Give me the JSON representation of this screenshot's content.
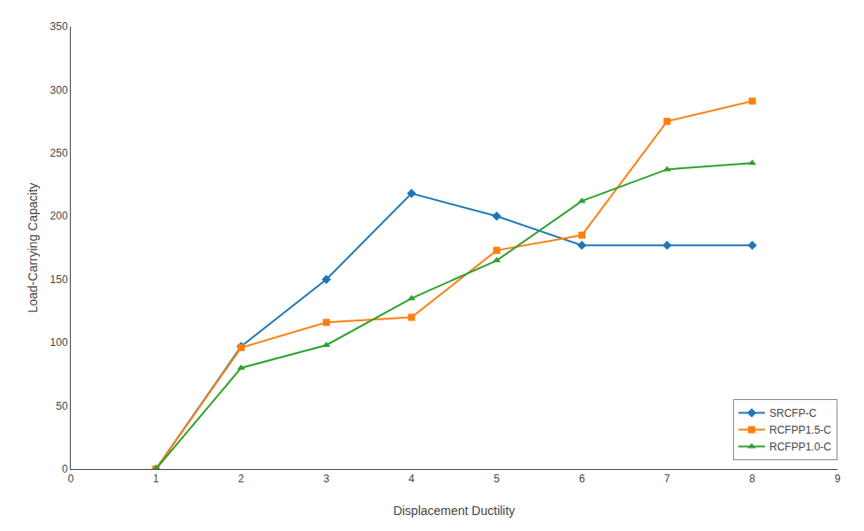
{
  "chart_data": {
    "type": "line",
    "x_label": "Displacement Ductility",
    "y_label": "Load-Carrying Capacity",
    "x": [
      1,
      2,
      3,
      4,
      5,
      6,
      7,
      8
    ],
    "series": [
      {
        "name": "SRCFP-C",
        "marker": "diamond",
        "values": [
          0,
          97,
          150,
          218,
          200,
          177,
          177,
          177
        ]
      },
      {
        "name": "RCFPP1.5-C",
        "marker": "square",
        "values": [
          0,
          96,
          116,
          120,
          173,
          185,
          275,
          291
        ]
      },
      {
        "name": "RCFPP1.0-C",
        "marker": "triangle",
        "values": [
          0,
          80,
          98,
          135,
          165,
          212,
          237,
          242
        ]
      }
    ],
    "xlim": [
      0,
      9
    ],
    "ylim": [
      0,
      350
    ],
    "xticks": [
      0,
      1,
      2,
      3,
      4,
      5,
      6,
      7,
      8,
      9
    ],
    "yticks": [
      0,
      50,
      100,
      150,
      200,
      250,
      300,
      350
    ],
    "grid": false,
    "legend": "lower right"
  }
}
